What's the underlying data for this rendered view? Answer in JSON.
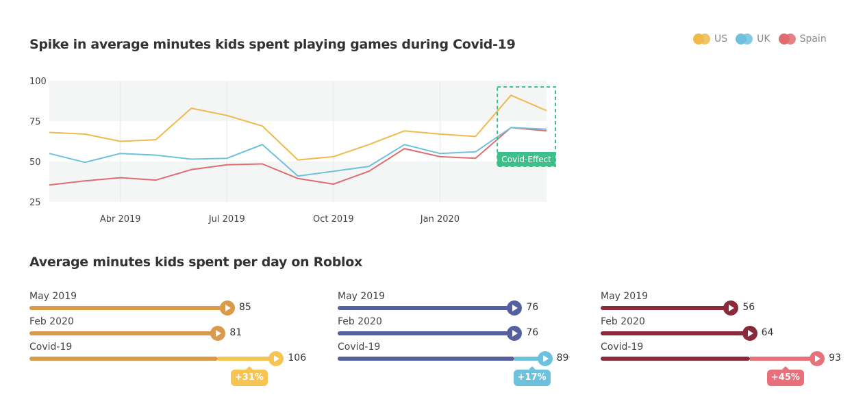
{
  "colors": {
    "us": "#f0b94a",
    "uk": "#6ec1dd",
    "spain": "#e06c70",
    "covid_box": "#3dbf8a",
    "us_bar": "#d99a4c",
    "uk_bar": "#5560a0",
    "spain_bar": "#8a2a3a",
    "us_ext": "#f7c451",
    "uk_ext": "#6ec1dd",
    "spain_ext": "#e8707a"
  },
  "legend": [
    {
      "label": "US",
      "key": "us"
    },
    {
      "label": "UK",
      "key": "uk"
    },
    {
      "label": "Spain",
      "key": "spain"
    }
  ],
  "chart_data": [
    {
      "type": "line",
      "title": "Spike in average minutes kids spent playing games during Covid-19",
      "x": [
        "2019-02",
        "2019-03",
        "2019-04",
        "2019-05",
        "2019-06",
        "2019-07",
        "2019-08",
        "2019-09",
        "2019-10",
        "2019-11",
        "2019-12",
        "2020-01",
        "2020-02",
        "2020-03",
        "2020-04"
      ],
      "x_tick_labels": [
        "Abr 2019",
        "Jul 2019",
        "Oct 2019",
        "Jan 2020"
      ],
      "ylim": [
        25,
        100
      ],
      "y_ticks": [
        100,
        75,
        50,
        25
      ],
      "series": [
        {
          "name": "US",
          "key": "us",
          "values": [
            68,
            67,
            62.5,
            63.5,
            83,
            78.5,
            72,
            51,
            53,
            60.5,
            69,
            67,
            65.5,
            91,
            81.5
          ]
        },
        {
          "name": "UK",
          "key": "uk",
          "values": [
            55,
            49.5,
            55,
            54,
            51.5,
            52,
            60.5,
            41,
            44,
            47,
            60.5,
            55,
            56,
            71,
            70
          ]
        },
        {
          "name": "Spain",
          "key": "spain",
          "values": [
            35.5,
            38,
            40,
            38.5,
            45,
            48,
            48.5,
            39.5,
            36,
            44,
            58,
            53,
            52,
            71,
            69
          ]
        }
      ],
      "annotation": {
        "label": "Covid-Effect",
        "from_index": 13,
        "to_index": 14
      }
    },
    {
      "type": "bar",
      "title": "Average minutes kids spent per day on Roblox",
      "groups": [
        {
          "key": "us",
          "rows": [
            {
              "label": "May 2019",
              "value": 85
            },
            {
              "label": "Feb 2020",
              "value": 81
            },
            {
              "label": "Covid-19",
              "value": 106,
              "change": "+31%"
            }
          ]
        },
        {
          "key": "uk",
          "rows": [
            {
              "label": "May 2019",
              "value": 76
            },
            {
              "label": "Feb 2020",
              "value": 76
            },
            {
              "label": "Covid-19",
              "value": 89,
              "change": "+17%"
            }
          ]
        },
        {
          "key": "spain",
          "rows": [
            {
              "label": "May 2019",
              "value": 56
            },
            {
              "label": "Feb 2020",
              "value": 64
            },
            {
              "label": "Covid-19",
              "value": 93,
              "change": "+45%"
            }
          ]
        }
      ]
    }
  ]
}
